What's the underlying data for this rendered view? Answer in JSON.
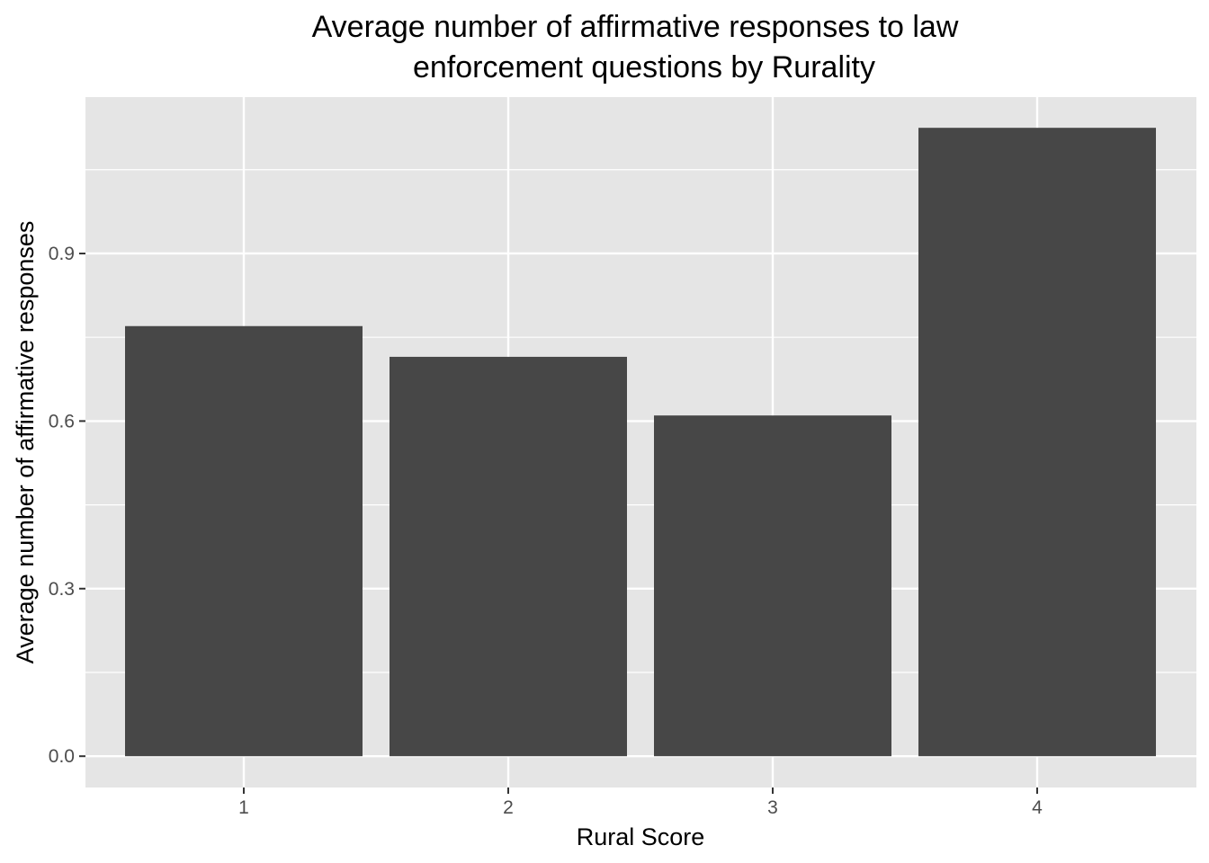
{
  "chart_data": {
    "type": "bar",
    "title_lines": [
      "Average number of affirmative responses to law",
      "enforcement questions by Rurality"
    ],
    "xlabel": "Rural Score",
    "ylabel": "Average number of affirmative responses",
    "categories": [
      "1",
      "2",
      "3",
      "4"
    ],
    "values": [
      0.77,
      0.715,
      0.61,
      1.125
    ],
    "ylim": [
      -0.056,
      1.18
    ],
    "yticks": [
      0.0,
      0.3,
      0.6,
      0.9
    ],
    "ytick_labels": [
      "0.0",
      "0.3",
      "0.6",
      "0.9"
    ],
    "grid": true,
    "legend": "none",
    "colors": {
      "panel_background": "#e5e5e5",
      "grid_major": "#ffffff",
      "bar_fill": "#474747",
      "tick_text": "#4d4d4d",
      "tick_mark": "#333333"
    }
  }
}
